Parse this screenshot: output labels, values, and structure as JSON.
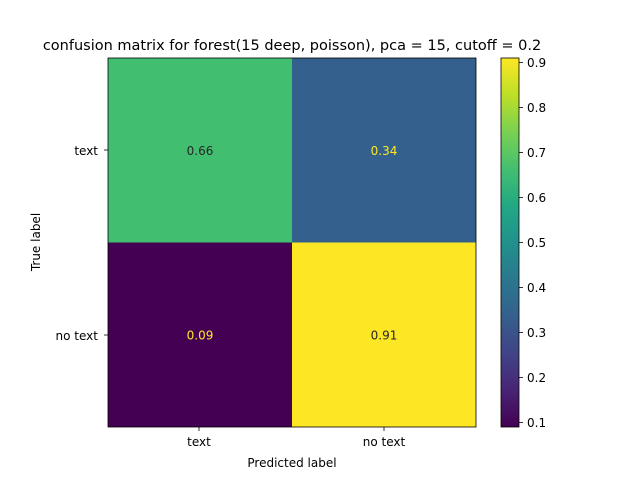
{
  "chart_data": {
    "type": "heatmap",
    "title": "confusion matrix for forest(15 deep, poisson), pca = 15, cutoff = 0.2",
    "xlabel": "Predicted label",
    "ylabel": "True label",
    "x_categories": [
      "text",
      "no text"
    ],
    "y_categories": [
      "text",
      "no text"
    ],
    "values": [
      [
        0.66,
        0.34
      ],
      [
        0.09,
        0.91
      ]
    ],
    "cell_labels": [
      [
        "0.66",
        "0.34"
      ],
      [
        "0.09",
        "0.91"
      ]
    ],
    "colormap": "viridis",
    "colorbar": {
      "vmin": 0.09,
      "vmax": 0.91,
      "ticks": [
        0.1,
        0.2,
        0.3,
        0.4,
        0.5,
        0.6,
        0.7,
        0.8,
        0.9
      ],
      "tick_labels": [
        "0.1",
        "0.2",
        "0.3",
        "0.4",
        "0.5",
        "0.6",
        "0.7",
        "0.8",
        "0.9"
      ]
    },
    "text_colors": {
      "on_light": "#262626",
      "on_dark": "#fde725"
    },
    "grid": false
  }
}
